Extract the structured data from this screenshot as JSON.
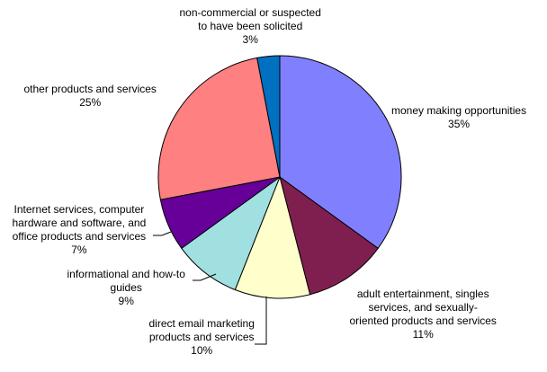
{
  "chart_data": {
    "type": "pie",
    "title": "",
    "slices": [
      {
        "label": [
          "money making opportunities"
        ],
        "pct_label": "35%",
        "value": 35,
        "color": "#8080FF"
      },
      {
        "label": [
          "adult entertainment, singles",
          "services, and sexually-",
          "oriented products and services"
        ],
        "pct_label": "11%",
        "value": 11,
        "color": "#7F1F4F"
      },
      {
        "label": [
          "direct email marketing",
          "products and services"
        ],
        "pct_label": "10%",
        "value": 10,
        "color": "#FFFFCC"
      },
      {
        "label": [
          "informational and how-to",
          "guides"
        ],
        "pct_label": "9%",
        "value": 9,
        "color": "#A0E0E0"
      },
      {
        "label": [
          "Internet services, computer",
          "hardware and software, and",
          "office products and services"
        ],
        "pct_label": "7%",
        "value": 7,
        "color": "#660099"
      },
      {
        "label": [
          "other products and services"
        ],
        "pct_label": "25%",
        "value": 25,
        "color": "#FF8080"
      },
      {
        "label": [
          "non-commercial or suspected",
          "to have been solicited"
        ],
        "pct_label": "3%",
        "value": 3,
        "color": "#0070C0"
      }
    ]
  }
}
